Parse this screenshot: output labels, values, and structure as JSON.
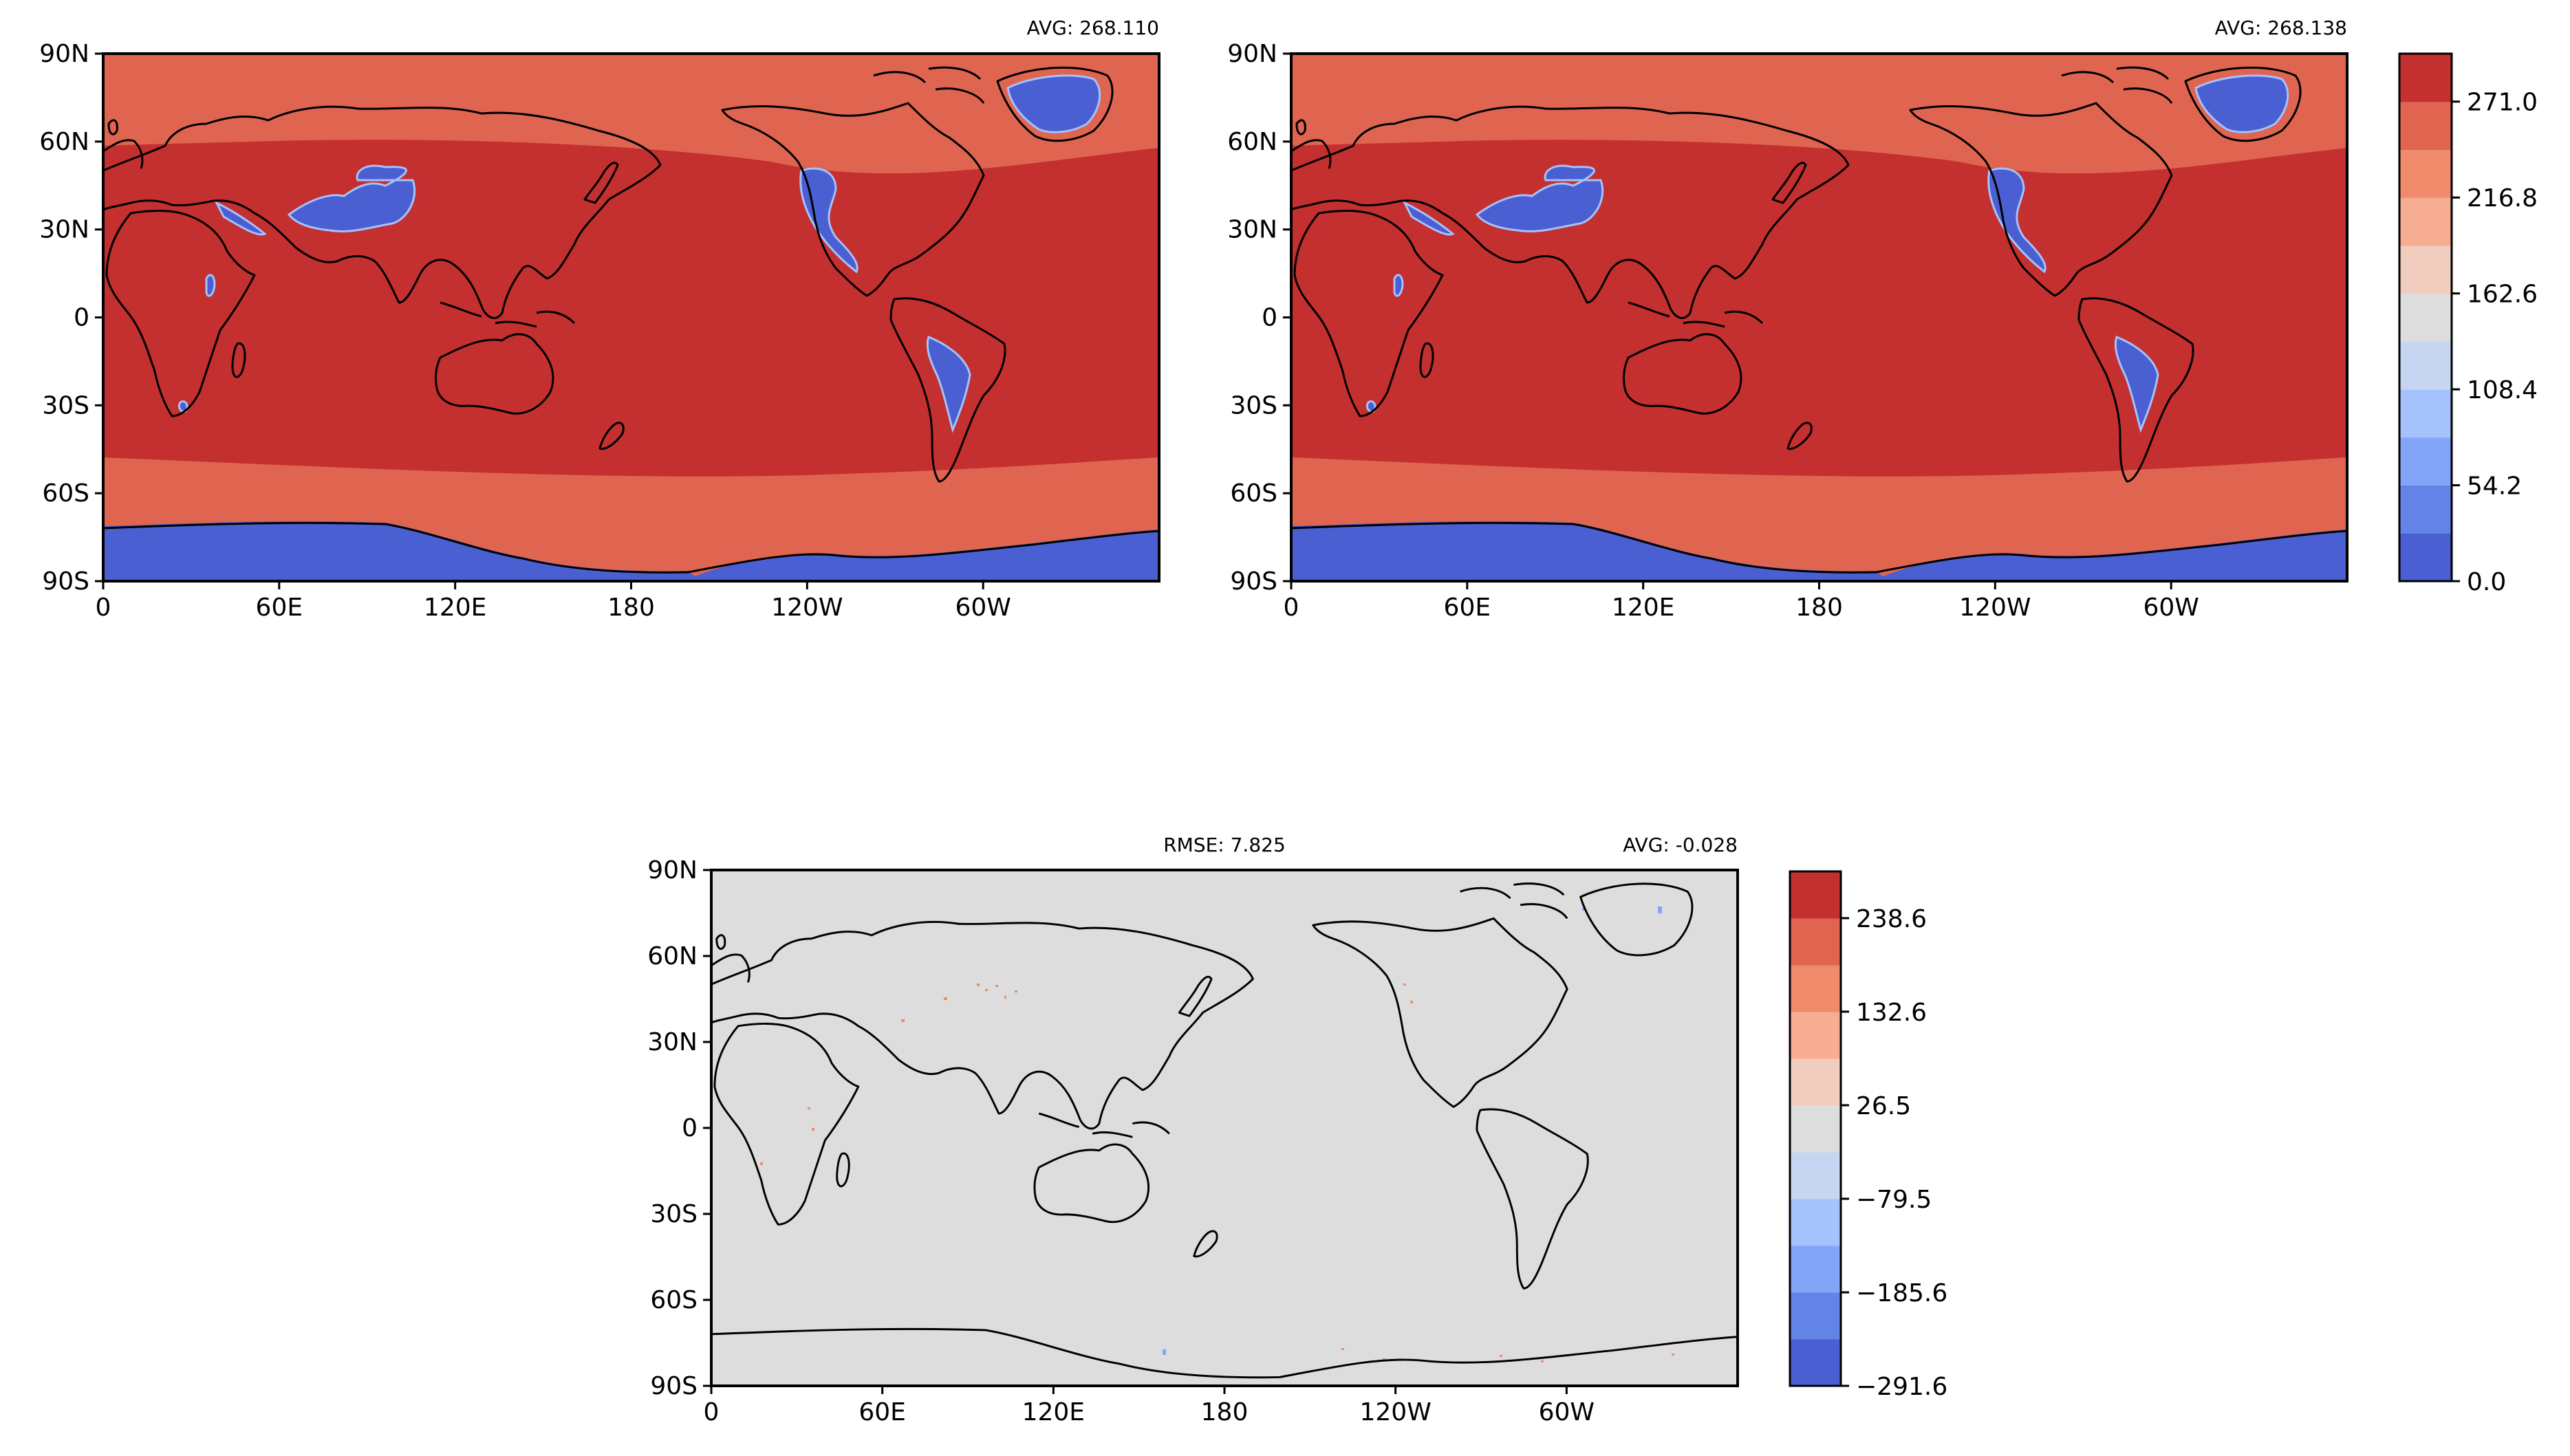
{
  "palette": {
    "levels": [
      "#4a5fd1",
      "#6483e6",
      "#82a5f7",
      "#a5c2fc",
      "#c6d6f0",
      "#dddddd",
      "#f1cdbf",
      "#f6ad92",
      "#ef8a6b",
      "#df6551",
      "#c3302f"
    ]
  },
  "chart_data": [
    {
      "type": "heatmap",
      "panel": "test",
      "title_right": "AVG: 268.110",
      "xtick_labels": [
        "0",
        "60E",
        "120E",
        "180",
        "120W",
        "60W"
      ],
      "ytick_labels": [
        "90N",
        "60N",
        "30N",
        "0",
        "30S",
        "60S",
        "90S"
      ],
      "x_ticks_deg": [
        0,
        60,
        120,
        180,
        240,
        300
      ],
      "y_ticks_deg": [
        90,
        60,
        30,
        0,
        -30,
        -60,
        -90
      ],
      "xlim": [
        0,
        360
      ],
      "ylim": [
        -90,
        90
      ],
      "avg": 268.11
    },
    {
      "type": "heatmap",
      "panel": "reference",
      "title_right": "AVG: 268.138",
      "xtick_labels": [
        "0",
        "60E",
        "120E",
        "180",
        "120W",
        "60W"
      ],
      "ytick_labels": [
        "90N",
        "60N",
        "30N",
        "0",
        "30S",
        "60S",
        "90S"
      ],
      "x_ticks_deg": [
        0,
        60,
        120,
        180,
        240,
        300
      ],
      "y_ticks_deg": [
        90,
        60,
        30,
        0,
        -30,
        -60,
        -90
      ],
      "xlim": [
        0,
        360
      ],
      "ylim": [
        -90,
        90
      ],
      "avg": 268.138,
      "colorbar": {
        "tick_labels": [
          "271.0",
          "216.8",
          "162.6",
          "108.4",
          "54.2",
          "0.0"
        ],
        "tick_values": [
          271.0,
          216.8,
          162.6,
          108.4,
          54.2,
          0.0
        ],
        "range": [
          0.0,
          298.1
        ]
      }
    },
    {
      "type": "heatmap",
      "panel": "difference",
      "title_center": "RMSE: 7.825",
      "title_right": "AVG: -0.028",
      "xtick_labels": [
        "0",
        "60E",
        "120E",
        "180",
        "120W",
        "60W"
      ],
      "ytick_labels": [
        "90N",
        "60N",
        "30N",
        "0",
        "30S",
        "60S",
        "90S"
      ],
      "x_ticks_deg": [
        0,
        60,
        120,
        180,
        240,
        300
      ],
      "y_ticks_deg": [
        90,
        60,
        30,
        0,
        -30,
        -60,
        -90
      ],
      "xlim": [
        0,
        360
      ],
      "ylim": [
        -90,
        90
      ],
      "rmse": 7.825,
      "avg": -0.028,
      "colorbar": {
        "tick_labels": [
          "238.6",
          "132.6",
          "26.5",
          "−79.5",
          "−185.6",
          "−291.6"
        ],
        "tick_values": [
          238.6,
          132.6,
          26.5,
          -79.5,
          -185.6,
          -291.6
        ],
        "range": [
          -291.6,
          291.6
        ]
      }
    }
  ]
}
